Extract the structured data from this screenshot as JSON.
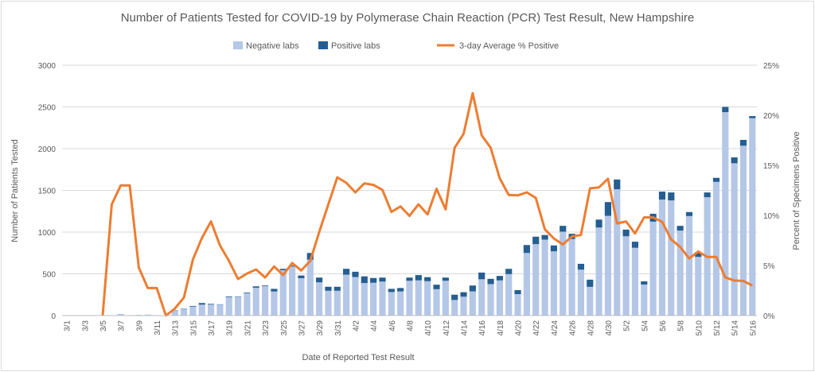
{
  "chart_data": {
    "type": "bar",
    "title": "Number of Patients Tested for COVID-19 by Polymerase Chain Reaction (PCR) Test Result, New Hampshire",
    "xlabel": "Date of Reported Test Result",
    "ylabel": "Number of Patients Tested",
    "y2label": "Percent of Specimens Positive",
    "ylim": [
      0,
      3000
    ],
    "yticks": [
      "0",
      "500",
      "1000",
      "1500",
      "2000",
      "2500",
      "3000"
    ],
    "y2lim": [
      0,
      25
    ],
    "y2ticks": [
      "0%",
      "5%",
      "10%",
      "15%",
      "20%",
      "25%"
    ],
    "grid": true,
    "legend_position": "top",
    "stacked": true,
    "categories": [
      "3/1",
      "3/2",
      "3/3",
      "3/4",
      "3/5",
      "3/6",
      "3/7",
      "3/8",
      "3/9",
      "3/10",
      "3/11",
      "3/12",
      "3/13",
      "3/14",
      "3/15",
      "3/16",
      "3/17",
      "3/18",
      "3/19",
      "3/20",
      "3/21",
      "3/22",
      "3/23",
      "3/24",
      "3/25",
      "3/26",
      "3/27",
      "3/28",
      "3/29",
      "3/30",
      "3/31",
      "4/1",
      "4/2",
      "4/3",
      "4/4",
      "4/5",
      "4/6",
      "4/7",
      "4/8",
      "4/9",
      "4/10",
      "4/11",
      "4/12",
      "4/13",
      "4/14",
      "4/15",
      "4/16",
      "4/17",
      "4/18",
      "4/19",
      "4/20",
      "4/21",
      "4/22",
      "4/23",
      "4/24",
      "4/25",
      "4/26",
      "4/27",
      "4/28",
      "4/29",
      "4/30",
      "5/1",
      "5/2",
      "5/3",
      "5/4",
      "5/5",
      "5/6",
      "5/7",
      "5/8",
      "5/9",
      "5/10",
      "5/11",
      "5/12",
      "5/13",
      "5/14",
      "5/15",
      "5/16"
    ],
    "series": [
      {
        "name": "Negative labs",
        "type": "bar",
        "axis": "left",
        "color": "#b4c7e7",
        "values": [
          0,
          0,
          0,
          0,
          0,
          4,
          12,
          0,
          7,
          9,
          5,
          0,
          62,
          82,
          107,
          131,
          132,
          131,
          222,
          225,
          267,
          334,
          352,
          288,
          544,
          588,
          448,
          670,
          398,
          297,
          297,
          490,
          462,
          390,
          393,
          407,
          282,
          289,
          417,
          422,
          412,
          316,
          417,
          187,
          226,
          290,
          435,
          377,
          421,
          497,
          257,
          750,
          856,
          910,
          770,
          1005,
          917,
          550,
          344,
          1055,
          1195,
          1513,
          950,
          812,
          372,
          1125,
          1390,
          1380,
          1018,
          1192,
          703,
          1418,
          1602,
          2437,
          1825,
          2035,
          2365
        ]
      },
      {
        "name": "Positive labs",
        "type": "bar",
        "axis": "left",
        "color": "#255e91",
        "values": [
          0,
          0,
          0,
          0,
          0,
          1,
          3,
          0,
          1,
          1,
          0,
          0,
          3,
          3,
          8,
          19,
          8,
          4,
          8,
          5,
          8,
          16,
          8,
          32,
          16,
          12,
          32,
          80,
          57,
          48,
          48,
          70,
          63,
          80,
          57,
          48,
          38,
          41,
          38,
          63,
          48,
          54,
          38,
          63,
          54,
          70,
          80,
          63,
          54,
          63,
          48,
          95,
          89,
          55,
          70,
          70,
          63,
          70,
          86,
          95,
          165,
          117,
          80,
          73,
          38,
          95,
          95,
          95,
          57,
          48,
          57,
          57,
          48,
          63,
          70,
          70,
          25
        ]
      },
      {
        "name": "3-day Average % Positive",
        "type": "line",
        "axis": "right",
        "color": "#ed7d31",
        "values": [
          null,
          null,
          null,
          null,
          0,
          11.1,
          13.0,
          13.0,
          4.8,
          2.75,
          2.75,
          0,
          0.7,
          1.8,
          5.6,
          7.75,
          9.4,
          7.0,
          5.45,
          3.65,
          4.2,
          4.6,
          3.8,
          4.9,
          4.05,
          5.25,
          4.5,
          5.45,
          8.35,
          11.1,
          13.8,
          13.25,
          12.3,
          13.2,
          13.05,
          12.55,
          10.35,
          10.9,
          9.95,
          11.1,
          10.1,
          12.65,
          10.6,
          16.75,
          18.15,
          22.2,
          18.0,
          16.75,
          13.7,
          12.05,
          12.0,
          12.3,
          11.75,
          8.6,
          7.7,
          7.1,
          7.9,
          8.05,
          12.7,
          12.8,
          13.65,
          9.2,
          9.4,
          8.2,
          9.8,
          9.8,
          9.35,
          7.6,
          6.85,
          5.7,
          6.4,
          5.85,
          5.85,
          3.8,
          3.5,
          3.45,
          3.0
        ]
      }
    ],
    "xtick_labels_every": 2
  }
}
